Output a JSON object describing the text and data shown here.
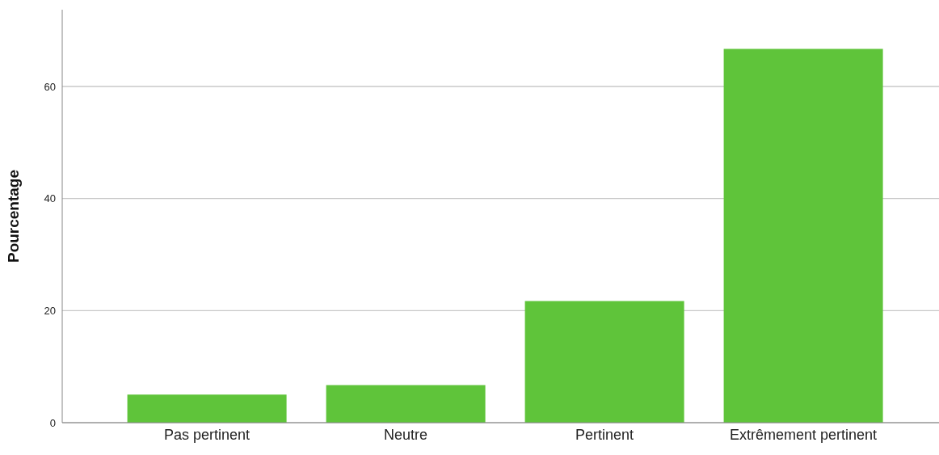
{
  "chart_data": {
    "type": "bar",
    "ylabel": "Pourcentage",
    "categories": [
      "Pas pertinent",
      "Neutre",
      "Pertinent",
      "Extrêmement pertinent"
    ],
    "values": [
      5.0,
      6.7,
      21.7,
      66.7
    ],
    "color": "#5fc43a",
    "ylim": [
      0,
      73.7
    ],
    "yticks": [
      0,
      20,
      40,
      60
    ],
    "grid": "y"
  }
}
